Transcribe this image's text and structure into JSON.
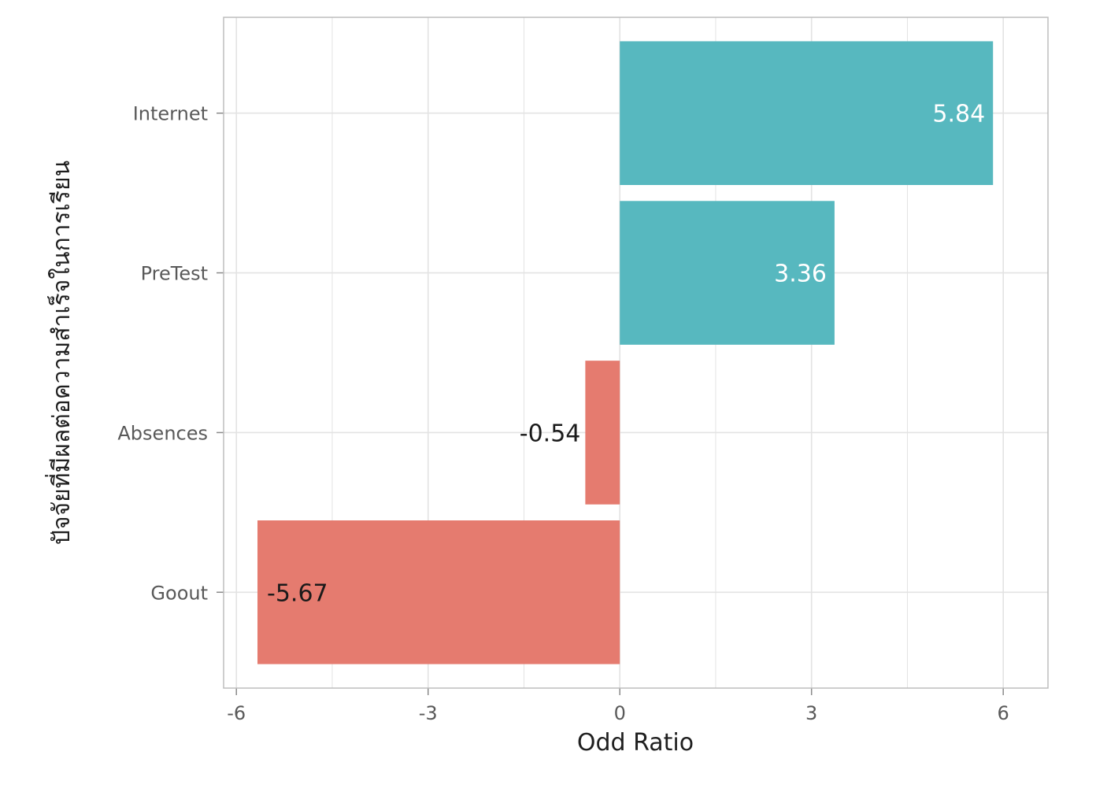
{
  "chart_data": {
    "type": "bar",
    "orientation": "horizontal",
    "title": "",
    "xlabel": "Odd Ratio",
    "ylabel": "ปัจจัยที่มีผลต่อความสำเร็จในการเรียน",
    "xlim": [
      -6.2,
      6.7
    ],
    "xticks": [
      -6,
      -3,
      0,
      3,
      6
    ],
    "xtick_labels": [
      "-6",
      "-3",
      "0",
      "3",
      "6"
    ],
    "categories": [
      "Internet",
      "PreTest",
      "Absences",
      "Goout"
    ],
    "values": [
      5.84,
      3.36,
      -0.54,
      -5.67
    ],
    "data_labels": [
      "5.84",
      "3.36",
      "-0.54",
      "-5.67"
    ],
    "colors": {
      "positive": "#57B8BF",
      "negative": "#E57B6F",
      "positive_label": "#ffffff",
      "negative_label": "#1a1a1a",
      "grid": "#e3e3e3",
      "panel_border": "#bdbdbd"
    },
    "grid": true,
    "legend": "none"
  }
}
